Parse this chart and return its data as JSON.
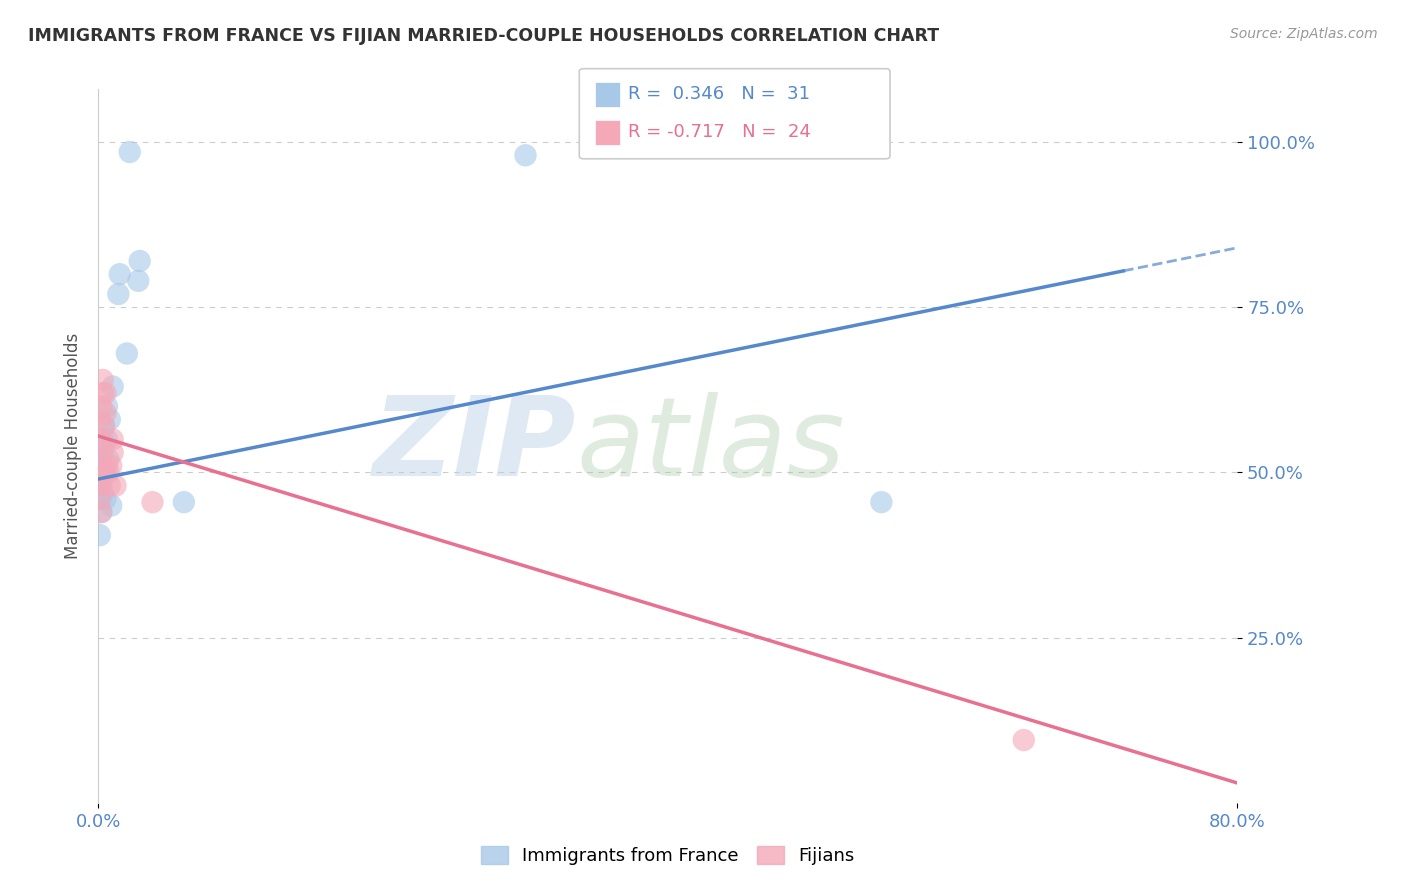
{
  "title": "IMMIGRANTS FROM FRANCE VS FIJIAN MARRIED-COUPLE HOUSEHOLDS CORRELATION CHART",
  "source": "Source: ZipAtlas.com",
  "ylabel": "Married-couple Households",
  "ytick_labels": [
    "100.0%",
    "75.0%",
    "50.0%",
    "25.0%"
  ],
  "ytick_vals": [
    1.0,
    0.75,
    0.5,
    0.25
  ],
  "xtick_labels": [
    "0.0%",
    "80.0%"
  ],
  "xtick_vals": [
    0.0,
    0.8
  ],
  "legend_blue_label": "Immigrants from France",
  "legend_pink_label": "Fijians",
  "legend_blue_R": "R =  0.346",
  "legend_blue_N": "N =  31",
  "legend_pink_R": "R = -0.717",
  "legend_pink_N": "N =  24",
  "blue_scatter": [
    [
      0.001,
      0.48
    ],
    [
      0.001,
      0.46
    ],
    [
      0.001,
      0.5
    ],
    [
      0.001,
      0.52
    ],
    [
      0.002,
      0.52
    ],
    [
      0.002,
      0.51
    ],
    [
      0.002,
      0.49
    ],
    [
      0.002,
      0.44
    ],
    [
      0.003,
      0.47
    ],
    [
      0.003,
      0.53
    ],
    [
      0.003,
      0.55
    ],
    [
      0.004,
      0.5
    ],
    [
      0.004,
      0.57
    ],
    [
      0.005,
      0.5
    ],
    [
      0.005,
      0.46
    ],
    [
      0.006,
      0.6
    ],
    [
      0.006,
      0.55
    ],
    [
      0.007,
      0.52
    ],
    [
      0.008,
      0.58
    ],
    [
      0.009,
      0.45
    ],
    [
      0.01,
      0.63
    ],
    [
      0.014,
      0.77
    ],
    [
      0.015,
      0.8
    ],
    [
      0.02,
      0.68
    ],
    [
      0.022,
      0.985
    ],
    [
      0.028,
      0.79
    ],
    [
      0.029,
      0.82
    ],
    [
      0.06,
      0.455
    ],
    [
      0.3,
      0.98
    ],
    [
      0.55,
      0.455
    ],
    [
      0.001,
      0.405
    ]
  ],
  "pink_scatter": [
    [
      0.001,
      0.55
    ],
    [
      0.001,
      0.49
    ],
    [
      0.001,
      0.58
    ],
    [
      0.002,
      0.6
    ],
    [
      0.002,
      0.52
    ],
    [
      0.002,
      0.48
    ],
    [
      0.003,
      0.5
    ],
    [
      0.003,
      0.62
    ],
    [
      0.003,
      0.64
    ],
    [
      0.004,
      0.54
    ],
    [
      0.004,
      0.57
    ],
    [
      0.005,
      0.59
    ],
    [
      0.005,
      0.62
    ],
    [
      0.006,
      0.51
    ],
    [
      0.007,
      0.5
    ],
    [
      0.008,
      0.48
    ],
    [
      0.009,
      0.51
    ],
    [
      0.01,
      0.53
    ],
    [
      0.01,
      0.55
    ],
    [
      0.012,
      0.48
    ],
    [
      0.038,
      0.455
    ],
    [
      0.001,
      0.46
    ],
    [
      0.002,
      0.44
    ],
    [
      0.65,
      0.095
    ]
  ],
  "blue_line_solid": [
    [
      0.0,
      0.49
    ],
    [
      0.72,
      0.805
    ]
  ],
  "blue_line_dashed": [
    [
      0.72,
      0.805
    ],
    [
      0.8,
      0.84
    ]
  ],
  "pink_line": [
    [
      0.0,
      0.555
    ],
    [
      0.8,
      0.03
    ]
  ],
  "blue_color": "#a8c8e8",
  "pink_color": "#f4a8b8",
  "blue_line_color": "#5588cc",
  "pink_line_color": "#e87090",
  "bg_color": "#ffffff",
  "grid_color": "#cccccc",
  "xlim": [
    0.0,
    0.8
  ],
  "ylim": [
    0.0,
    1.08
  ]
}
